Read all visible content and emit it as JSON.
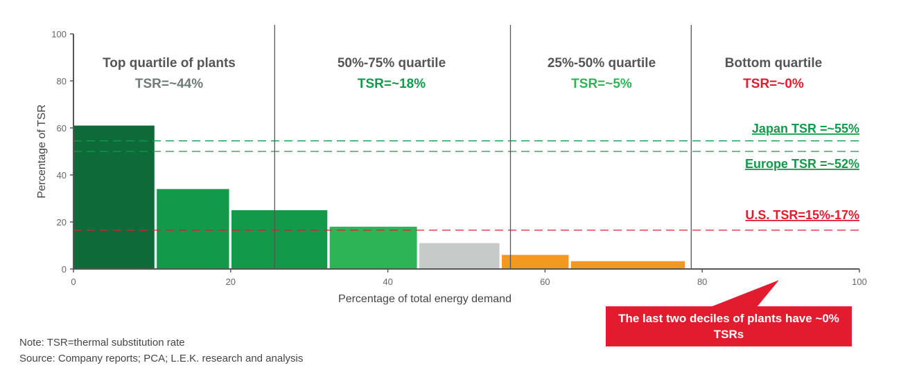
{
  "chart_data": {
    "type": "bar",
    "xlabel": "Percentage of total energy demand",
    "ylabel": "Percentage of TSR",
    "xlim": [
      0,
      100
    ],
    "ylim": [
      0,
      100
    ],
    "xticks": [
      "0",
      "20",
      "40",
      "60",
      "80",
      "100"
    ],
    "yticks": [
      "0",
      "20",
      "40",
      "60",
      "80",
      "100"
    ],
    "bars": [
      {
        "x0": 0,
        "x1": 10.3,
        "value": 61,
        "color": "#0d6b3a"
      },
      {
        "x0": 10.6,
        "x1": 19.8,
        "value": 34,
        "color": "#12994a"
      },
      {
        "x0": 20.1,
        "x1": 32.3,
        "value": 25,
        "color": "#12994a"
      },
      {
        "x0": 32.6,
        "x1": 43.7,
        "value": 18,
        "color": "#2db457"
      },
      {
        "x0": 44.0,
        "x1": 54.2,
        "value": 11,
        "color": "#c6cbca"
      },
      {
        "x0": 54.5,
        "x1": 63.0,
        "value": 6,
        "color": "#f29a1f"
      },
      {
        "x0": 63.3,
        "x1": 77.8,
        "value": 3.3,
        "color": "#f29a1f"
      }
    ],
    "quartile_dividers": [
      25.6,
      55.6,
      78.6
    ],
    "quartiles": [
      {
        "title": "Top quartile of plants",
        "tsr": "TSR=~44%",
        "color": "#6e7b78"
      },
      {
        "title": "50%-75% quartile",
        "tsr": "TSR=~18%",
        "color": "#12994a"
      },
      {
        "title": "25%-50% quartile",
        "tsr": "TSR=~5%",
        "color": "#2db457"
      },
      {
        "title": "Bottom quartile",
        "tsr": "TSR=~0%",
        "color": "#e31b2e"
      }
    ],
    "reference_lines": [
      {
        "label": "Japan TSR =~55%",
        "value": 54.5,
        "color": "#12994a"
      },
      {
        "label": "Europe TSR =~52%",
        "value": 50,
        "color": "#12994a"
      },
      {
        "label": "U.S. TSR=15%-17%",
        "value": 16.5,
        "color": "#e31b2e"
      }
    ],
    "annotation": "The last two deciles of plants have ~0% TSRs"
  },
  "notes": {
    "note": "Note: TSR=thermal substitution rate",
    "source": "Source: Company reports; PCA; L.E.K. research and analysis"
  }
}
